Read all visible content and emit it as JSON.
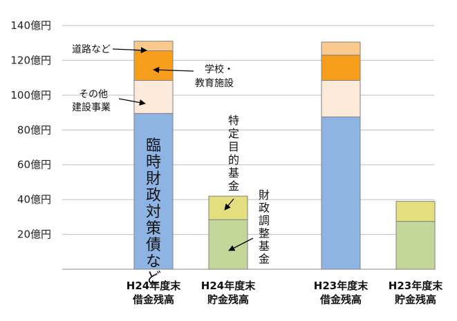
{
  "chart_data": {
    "type": "bar",
    "stacked": true,
    "unit": "億円",
    "ylim": [
      0,
      140
    ],
    "yticks": [
      "",
      "20億円",
      "40億円",
      "60億円",
      "80億円",
      "100億円",
      "120億円",
      "140億円"
    ],
    "grid": true,
    "bars": [
      {
        "category": [
          "H24年度末",
          "借金残高"
        ],
        "segments": [
          {
            "name": "臨時財政対策債など",
            "value": 89.5,
            "color": "#8eb4e3"
          },
          {
            "name": "その他建設事業",
            "value": 19.0,
            "color": "#fde9d9"
          },
          {
            "name": "学校・教育施設",
            "value": 17.0,
            "color": "#f79f1c"
          },
          {
            "name": "道路など",
            "value": 5.5,
            "color": "#fac98e"
          }
        ]
      },
      {
        "category": [
          "H24年度末",
          "貯金残高"
        ],
        "segments": [
          {
            "name": "財政調整基金",
            "value": 28.5,
            "color": "#c4d79b"
          },
          {
            "name": "特定目的基金",
            "value": 13.5,
            "color": "#e3df7f"
          }
        ]
      },
      {
        "category": [
          "H23年度末",
          "借金残高"
        ],
        "segments": [
          {
            "name": "臨時財政対策債など",
            "value": 87.5,
            "color": "#8eb4e3"
          },
          {
            "name": "その他建設事業",
            "value": 21.0,
            "color": "#fde9d9"
          },
          {
            "name": "学校・教育施設",
            "value": 14.5,
            "color": "#f79f1c"
          },
          {
            "name": "道路など",
            "value": 7.5,
            "color": "#fac98e"
          }
        ]
      },
      {
        "category": [
          "H23年度末",
          "貯金残高"
        ],
        "segments": [
          {
            "name": "財政調整基金",
            "value": 27.5,
            "color": "#c4d79b"
          },
          {
            "name": "特定目的基金",
            "value": 11.5,
            "color": "#e3df7f"
          }
        ]
      }
    ],
    "annotations": {
      "road": "道路など",
      "school": [
        "学校・",
        "教育施設"
      ],
      "other": [
        "その他",
        "建設事業"
      ],
      "rinji": "臨時財政対策債など",
      "tokutei": "特定目的基金",
      "zaisei": "財政調整基金"
    }
  }
}
